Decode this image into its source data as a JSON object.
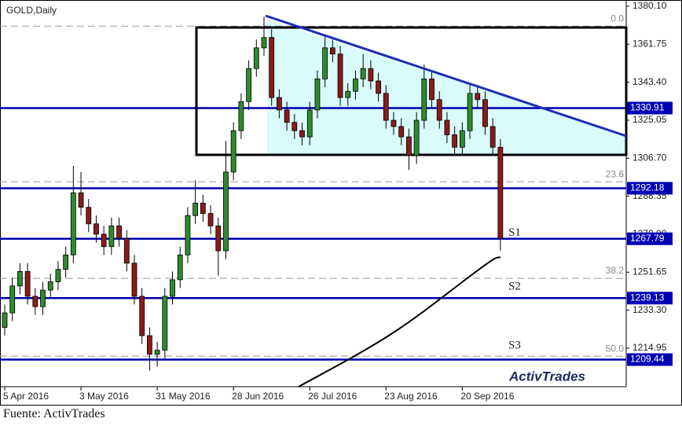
{
  "chart_data": {
    "type": "candlestick",
    "title": "GOLD,Daily",
    "source": "Fuente: ActivTrades",
    "logo": "ActivTrades",
    "x": [
      0,
      1,
      2,
      3,
      4,
      5,
      6,
      7,
      8,
      9,
      10,
      11,
      12,
      13,
      14,
      15,
      16,
      17,
      18,
      19,
      20,
      21,
      22,
      23,
      24,
      25,
      26,
      27,
      28,
      29,
      30,
      31,
      32,
      33,
      34,
      35,
      36,
      37,
      38,
      39,
      40,
      41,
      42,
      43,
      44,
      45,
      46,
      47,
      48,
      49,
      50,
      51,
      52,
      53,
      54,
      55,
      56,
      57,
      58,
      59,
      60,
      61,
      62,
      63,
      64,
      65
    ],
    "open": [
      1225,
      1232,
      1245,
      1252,
      1240,
      1235,
      1243,
      1247,
      1253,
      1260,
      1290,
      1283,
      1275,
      1270,
      1264,
      1274,
      1268,
      1256,
      1240,
      1221,
      1212,
      1214,
      1240,
      1248,
      1260,
      1279,
      1285,
      1280,
      1274,
      1262,
      1300,
      1320,
      1334,
      1350,
      1360,
      1365,
      1336,
      1330,
      1324,
      1320,
      1317,
      1330,
      1345,
      1360,
      1357,
      1336,
      1339,
      1345,
      1350,
      1344,
      1338,
      1325,
      1322,
      1317,
      1308,
      1325,
      1345,
      1335,
      1325,
      1318,
      1312,
      1320,
      1338,
      1335,
      1322,
      1312
    ],
    "high": [
      1236,
      1249,
      1256,
      1256,
      1244,
      1247,
      1251,
      1257,
      1264,
      1303,
      1300,
      1287,
      1279,
      1274,
      1278,
      1278,
      1272,
      1260,
      1244,
      1225,
      1218,
      1244,
      1252,
      1264,
      1283,
      1296,
      1289,
      1284,
      1278,
      1315,
      1324,
      1338,
      1354,
      1364,
      1375,
      1369,
      1340,
      1334,
      1328,
      1324,
      1334,
      1349,
      1366,
      1364,
      1361,
      1343,
      1349,
      1357,
      1354,
      1348,
      1342,
      1329,
      1326,
      1321,
      1329,
      1352,
      1349,
      1339,
      1329,
      1322,
      1324,
      1343,
      1342,
      1339,
      1326,
      1316
    ],
    "low": [
      1221,
      1228,
      1241,
      1236,
      1231,
      1231,
      1239,
      1243,
      1249,
      1256,
      1279,
      1271,
      1266,
      1260,
      1260,
      1264,
      1252,
      1236,
      1217,
      1204,
      1206,
      1210,
      1236,
      1244,
      1256,
      1275,
      1276,
      1270,
      1250,
      1258,
      1296,
      1316,
      1330,
      1346,
      1356,
      1332,
      1326,
      1320,
      1316,
      1313,
      1313,
      1326,
      1341,
      1353,
      1332,
      1332,
      1335,
      1341,
      1340,
      1334,
      1321,
      1318,
      1313,
      1301,
      1304,
      1321,
      1331,
      1321,
      1314,
      1308,
      1308,
      1316,
      1331,
      1318,
      1308,
      1262
    ],
    "close": [
      1232,
      1245,
      1252,
      1240,
      1235,
      1243,
      1247,
      1253,
      1260,
      1290,
      1283,
      1275,
      1270,
      1264,
      1274,
      1268,
      1256,
      1240,
      1221,
      1212,
      1214,
      1240,
      1248,
      1260,
      1279,
      1285,
      1280,
      1274,
      1262,
      1300,
      1320,
      1334,
      1350,
      1360,
      1365,
      1336,
      1330,
      1324,
      1320,
      1317,
      1330,
      1345,
      1360,
      1357,
      1336,
      1339,
      1345,
      1350,
      1344,
      1338,
      1325,
      1322,
      1317,
      1308,
      1325,
      1345,
      1335,
      1325,
      1318,
      1312,
      1320,
      1338,
      1335,
      1322,
      1312,
      1268
    ],
    "up_color": "#2e8b2e",
    "down_color": "#8b1a1a",
    "xlim": [
      0,
      81.5
    ],
    "xticks": [
      {
        "value": 0,
        "label": "5 Apr 2016"
      },
      {
        "value": 10,
        "label": "3 May 2016"
      },
      {
        "value": 20,
        "label": "31 May 2016"
      },
      {
        "value": 30,
        "label": "28 Jun 2016"
      },
      {
        "value": 40,
        "label": "26 Jul 2016"
      },
      {
        "value": 50,
        "label": "23 Aug 2016"
      },
      {
        "value": 60,
        "label": "20 Sep 2016"
      }
    ],
    "ylim": [
      1197.1,
      1383.1
    ],
    "yticks": [
      {
        "value": 1380.1,
        "label": "1380.10"
      },
      1361.75,
      {
        "value": 1343.4,
        "label": "1343.40"
      },
      1325.05,
      {
        "value": 1306.7,
        "label": "1306.70"
      },
      1288.35,
      {
        "value": 1270,
        "label": "1270.00"
      },
      1251.65,
      {
        "value": 1233.3,
        "label": "1233.30"
      },
      1214.95
    ],
    "levels": [
      1330.91,
      1292.18,
      1267.79,
      1239.13,
      1209.44
    ],
    "level_color": "#0000b4",
    "fib": [
      {
        "label": "0.0",
        "value": 1370.5
      },
      {
        "label": "23.6",
        "value": 1295.3
      },
      {
        "label": "38.2",
        "value": 1248.7
      },
      {
        "label": "50.0",
        "value": 1211.1
      }
    ],
    "supports": [
      {
        "label": "S1",
        "value": 1270.5
      },
      {
        "label": "S2",
        "value": 1244.5
      },
      {
        "label": "S3",
        "value": 1216
      }
    ]
  }
}
